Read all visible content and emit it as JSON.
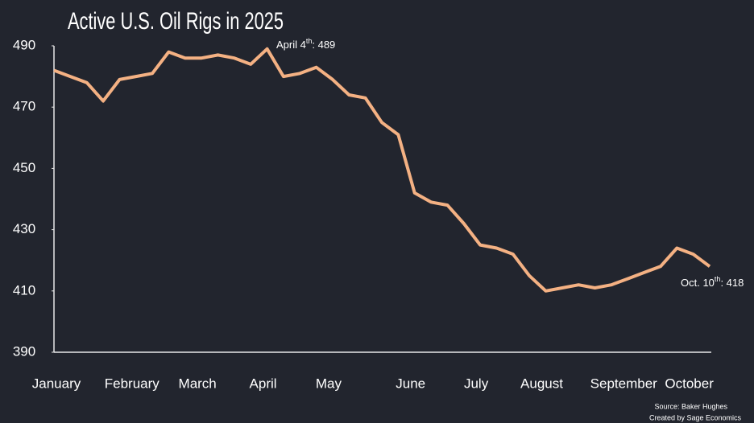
{
  "chart_data": {
    "type": "line",
    "title": "Active U.S. Oil Rigs in 2025",
    "categories": [
      "January",
      null,
      null,
      null,
      null,
      "February",
      null,
      null,
      null,
      "March",
      null,
      null,
      null,
      "April",
      null,
      null,
      null,
      "May",
      null,
      null,
      null,
      null,
      "June",
      null,
      null,
      null,
      "July",
      null,
      null,
      null,
      "August",
      null,
      null,
      null,
      null,
      "September",
      null,
      null,
      null,
      "October",
      null
    ],
    "series": [
      {
        "name": "Active U.S. Oil Rigs",
        "color": "#f4b183",
        "values": [
          482,
          480,
          478,
          472,
          479,
          480,
          481,
          488,
          486,
          486,
          487,
          486,
          484,
          489,
          480,
          481,
          483,
          479,
          474,
          473,
          465,
          461,
          442,
          439,
          438,
          432,
          425,
          424,
          422,
          415,
          410,
          411,
          412,
          411,
          412,
          414,
          416,
          418,
          424,
          422,
          418
        ]
      }
    ],
    "ylim": [
      390,
      490
    ],
    "yticks": [
      390,
      410,
      430,
      450,
      470,
      490
    ],
    "grid": false,
    "annotations": [
      {
        "text": "April 4",
        "sup": "th",
        "rest": ": 489"
      },
      {
        "text": "Oct. 10",
        "sup": "th",
        "rest": ": 418"
      }
    ],
    "source": "Source:  Baker Hughes",
    "credit": "Created by Sage Economics"
  }
}
